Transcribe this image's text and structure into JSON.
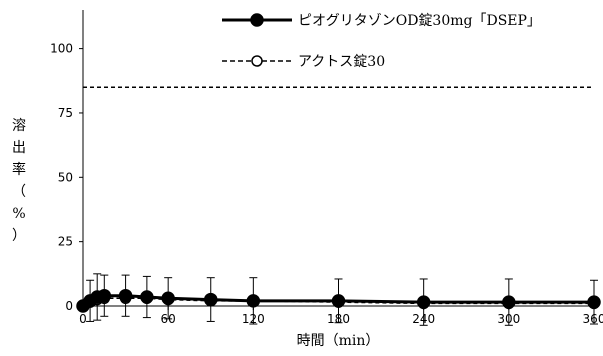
{
  "chart_data": {
    "type": "line",
    "xlabel": "時間（min）",
    "ylabel": "溶出率（%）",
    "xlim": [
      0,
      360
    ],
    "ylim": [
      0,
      115
    ],
    "xticks": [
      0,
      60,
      120,
      180,
      240,
      300,
      360
    ],
    "yticks": [
      0,
      25,
      50,
      75,
      100
    ],
    "grid": false,
    "legend_position": "top-right",
    "reference_line": {
      "y": 85,
      "style": "dashed"
    },
    "series": [
      {
        "name": "ピオグリタゾンOD錠30mg「DSEP」",
        "marker": "filled-circle",
        "line": "solid",
        "x": [
          0,
          5,
          10,
          15,
          30,
          45,
          60,
          90,
          120,
          180,
          240,
          300,
          360
        ],
        "y": [
          0,
          2,
          3.5,
          4,
          4,
          3.5,
          3,
          2.5,
          2,
          2,
          1.5,
          1.5,
          1.5
        ],
        "err": [
          0,
          8,
          9,
          8,
          8,
          8,
          8,
          8.5,
          9,
          8.5,
          9,
          9,
          8.5
        ]
      },
      {
        "name": "アクトス錠30",
        "marker": "open-circle",
        "line": "dashed",
        "x": [
          0,
          5,
          10,
          15,
          30,
          45,
          60,
          90,
          120,
          180,
          240,
          300,
          360
        ],
        "y": [
          0,
          1.5,
          2.5,
          3,
          3,
          3,
          2.5,
          2,
          2,
          1.5,
          1,
          1,
          1
        ],
        "err": [
          0,
          0,
          0,
          0,
          0,
          0,
          0,
          0,
          0,
          0,
          0,
          0,
          0
        ]
      }
    ]
  }
}
